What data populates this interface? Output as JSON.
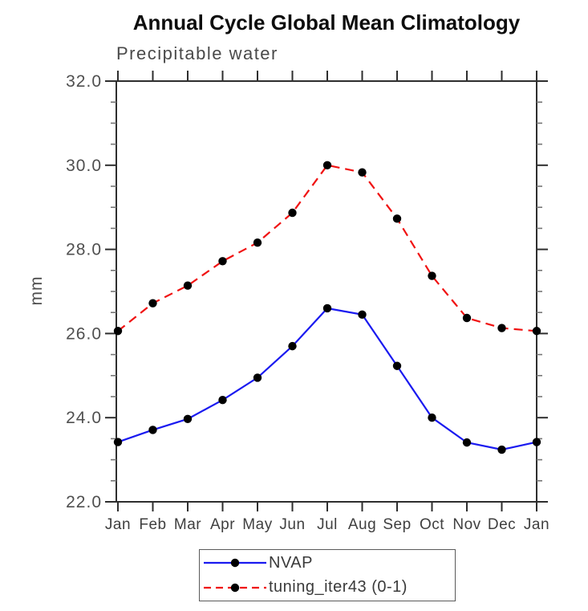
{
  "header": {
    "title": "Annual Cycle Global Mean Climatology",
    "subtitle": "Precipitable water"
  },
  "colors": {
    "axis": "#2e2e2e",
    "minor_tick": "#767676",
    "tick_label": "#4f4f4f",
    "month_label": "#3f3f3f",
    "marker": "#000000",
    "nvap_line": "#1a1af0",
    "tuning_line": "#f01212",
    "legend_border": "#5a5a5a"
  },
  "chart_data": {
    "type": "line",
    "title": "Annual Cycle Global Mean Climatology",
    "subtitle": "Precipitable water",
    "xlabel": "",
    "ylabel": "mm",
    "categories": [
      "Jan",
      "Feb",
      "Mar",
      "Apr",
      "May",
      "Jun",
      "Jul",
      "Aug",
      "Sep",
      "Oct",
      "Nov",
      "Dec",
      "Jan"
    ],
    "ylim": [
      22.0,
      32.0
    ],
    "ytick_step": 2.0,
    "ytick_labels": [
      "22.0",
      "24.0",
      "26.0",
      "28.0",
      "30.0",
      "32.0"
    ],
    "minor_tick_step": 0.5,
    "grid": false,
    "legend_position": "bottom",
    "series": [
      {
        "name": "NVAP",
        "color": "#1a1af0",
        "line_style": "solid",
        "marker": "circle",
        "marker_color": "#000000",
        "values": [
          23.42,
          23.71,
          23.97,
          24.42,
          24.95,
          25.7,
          26.6,
          26.45,
          25.23,
          24.0,
          23.41,
          23.24,
          23.42
        ]
      },
      {
        "name": "tuning_iter43 (0-1)",
        "color": "#f01212",
        "line_style": "dashed",
        "marker": "circle",
        "marker_color": "#000000",
        "values": [
          26.06,
          26.72,
          27.14,
          27.72,
          28.16,
          28.87,
          30.0,
          29.83,
          28.73,
          27.37,
          26.37,
          26.13,
          26.06
        ]
      }
    ]
  }
}
